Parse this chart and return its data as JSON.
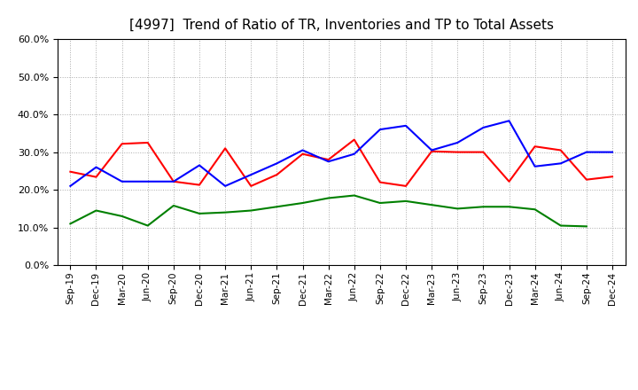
{
  "title": "[4997]  Trend of Ratio of TR, Inventories and TP to Total Assets",
  "x_labels": [
    "Sep-19",
    "Dec-19",
    "Mar-20",
    "Jun-20",
    "Sep-20",
    "Dec-20",
    "Mar-21",
    "Jun-21",
    "Sep-21",
    "Dec-21",
    "Mar-22",
    "Jun-22",
    "Sep-22",
    "Dec-22",
    "Mar-23",
    "Jun-23",
    "Sep-23",
    "Dec-23",
    "Mar-24",
    "Jun-24",
    "Sep-24",
    "Dec-24"
  ],
  "trade_receivables": [
    0.248,
    0.234,
    0.322,
    0.325,
    0.222,
    0.213,
    0.31,
    0.21,
    0.24,
    0.295,
    0.28,
    0.333,
    0.22,
    0.21,
    0.302,
    0.3,
    0.3,
    0.222,
    0.315,
    0.305,
    0.227,
    0.235
  ],
  "inventories": [
    0.21,
    0.26,
    0.222,
    0.222,
    0.222,
    0.265,
    0.21,
    0.24,
    0.27,
    0.305,
    0.275,
    0.295,
    0.36,
    0.37,
    0.305,
    0.325,
    0.365,
    0.383,
    0.262,
    0.27,
    0.3,
    0.3
  ],
  "trade_payables": [
    0.11,
    0.145,
    0.13,
    0.105,
    0.158,
    0.137,
    0.14,
    0.145,
    0.155,
    0.165,
    0.178,
    0.185,
    0.165,
    0.17,
    0.16,
    0.15,
    0.155,
    0.155,
    0.148,
    0.105,
    0.103,
    null
  ],
  "tr_color": "#ff0000",
  "inv_color": "#0000ff",
  "tp_color": "#008000",
  "ylim": [
    0.0,
    0.6
  ],
  "yticks": [
    0.0,
    0.1,
    0.2,
    0.3,
    0.4,
    0.5,
    0.6
  ],
  "grid_color": "#aaaaaa",
  "background_color": "#ffffff",
  "title_fontsize": 11,
  "tick_fontsize": 7.5,
  "legend_fontsize": 9
}
